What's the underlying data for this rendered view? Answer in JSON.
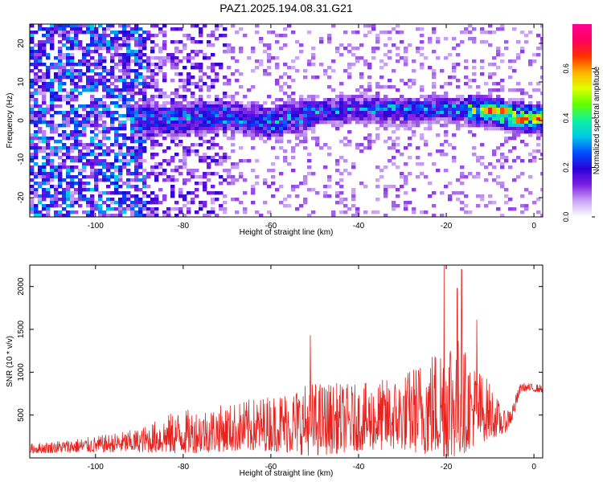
{
  "title": "PAZ1.2025.194.08.31.G21",
  "chart_data": [
    {
      "type": "heatmap",
      "xlabel": "Height of straight line (km)",
      "ylabel": "Frequency (Hz)",
      "xlim": [
        -115,
        2
      ],
      "ylim": [
        -25,
        25
      ],
      "xticks": [
        -100,
        -80,
        -60,
        -40,
        -20,
        0
      ],
      "yticks": [
        -20,
        -10,
        0,
        10,
        20
      ],
      "colorbar": {
        "label": "Normalized spectral amplitude",
        "range": [
          0,
          0.78
        ],
        "ticks": [
          "0.0",
          "0.2",
          "0.4",
          "0.6"
        ],
        "colors": [
          "#ffffff",
          "#c9a4f2",
          "#7d1fe3",
          "#2a00d8",
          "#0050ff",
          "#00c9e6",
          "#10f0a0",
          "#60ff00",
          "#e0ff00",
          "#ffb000",
          "#ff3000",
          "#ff0060",
          "#ff0090"
        ]
      },
      "ridge_center_hz": [
        {
          "x": -85,
          "y": 0
        },
        {
          "x": -75,
          "y": 1
        },
        {
          "x": -70,
          "y": 1
        },
        {
          "x": -60,
          "y": -0.5
        },
        {
          "x": -50,
          "y": 2
        },
        {
          "x": -40,
          "y": 3
        },
        {
          "x": -30,
          "y": 2.5
        },
        {
          "x": -20,
          "y": 3
        },
        {
          "x": -10,
          "y": 2.5
        },
        {
          "x": -5,
          "y": 1
        },
        {
          "x": 0,
          "y": 0.5
        }
      ],
      "peaks": [
        {
          "x": -10,
          "y": 2.5,
          "value": 0.75
        },
        {
          "x": -7,
          "y": 2.5,
          "value": 0.7
        },
        {
          "x": -3,
          "y": 0,
          "value": 0.72
        },
        {
          "x": 1,
          "y": 0.5,
          "value": 0.7
        }
      ]
    },
    {
      "type": "line",
      "xlabel": "Height of straight line (km)",
      "ylabel": "SNR (10 * v/v)",
      "xlim": [
        -115,
        2
      ],
      "ylim": [
        0,
        2250
      ],
      "xticks": [
        -100,
        -80,
        -60,
        -40,
        -20,
        0
      ],
      "yticks": [
        500,
        1000,
        1500,
        2000
      ],
      "series": [
        {
          "color": "#e8221e",
          "envelope": [
            {
              "x": -115,
              "base": 100,
              "amp": 100
            },
            {
              "x": -100,
              "base": 140,
              "amp": 170
            },
            {
              "x": -90,
              "base": 180,
              "amp": 250
            },
            {
              "x": -82,
              "base": 250,
              "amp": 450
            },
            {
              "x": -70,
              "base": 300,
              "amp": 500
            },
            {
              "x": -60,
              "base": 350,
              "amp": 600
            },
            {
              "x": -50,
              "base": 380,
              "amp": 800
            },
            {
              "x": -40,
              "base": 400,
              "amp": 700
            },
            {
              "x": -30,
              "base": 450,
              "amp": 800
            },
            {
              "x": -22,
              "base": 550,
              "amp": 1200
            },
            {
              "x": -19,
              "base": 600,
              "amp": 1550
            },
            {
              "x": -15,
              "base": 550,
              "amp": 1000
            },
            {
              "x": -10,
              "base": 500,
              "amp": 600
            },
            {
              "x": -7,
              "base": 380,
              "amp": 250
            },
            {
              "x": -5,
              "base": 500,
              "amp": 200
            },
            {
              "x": -3,
              "base": 820,
              "amp": 90
            },
            {
              "x": 2,
              "base": 800,
              "amp": 80
            }
          ],
          "peaks": [
            {
              "x": -20.5,
              "y": 2250
            },
            {
              "x": -16.5,
              "y": 2200
            },
            {
              "x": -17.5,
              "y": 1980
            },
            {
              "x": -13,
              "y": 1610
            },
            {
              "x": -51,
              "y": 1430
            }
          ]
        }
      ]
    }
  ]
}
